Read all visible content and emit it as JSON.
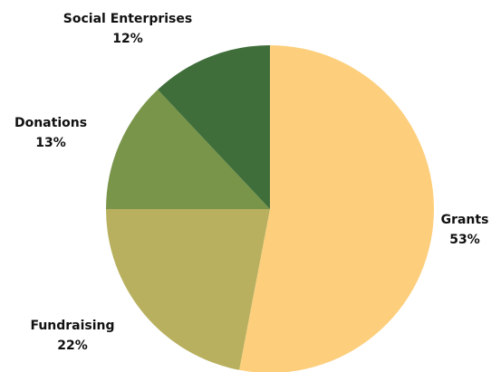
{
  "chart_data": {
    "type": "pie",
    "title": "",
    "slices": [
      {
        "label": "Grants",
        "value": 53,
        "value_label": "53%",
        "color": "#FDCF7D"
      },
      {
        "label": "Fundraising",
        "value": 22,
        "value_label": "22%",
        "color": "#B8B05E"
      },
      {
        "label": "Donations",
        "value": 13,
        "value_label": "13%",
        "color": "#79954A"
      },
      {
        "label": "Social Enterprises",
        "value": 12,
        "value_label": "12%",
        "color": "#3F6E3A"
      }
    ],
    "start_angle": "12 o'clock",
    "direction": "clockwise",
    "legend": "none"
  }
}
